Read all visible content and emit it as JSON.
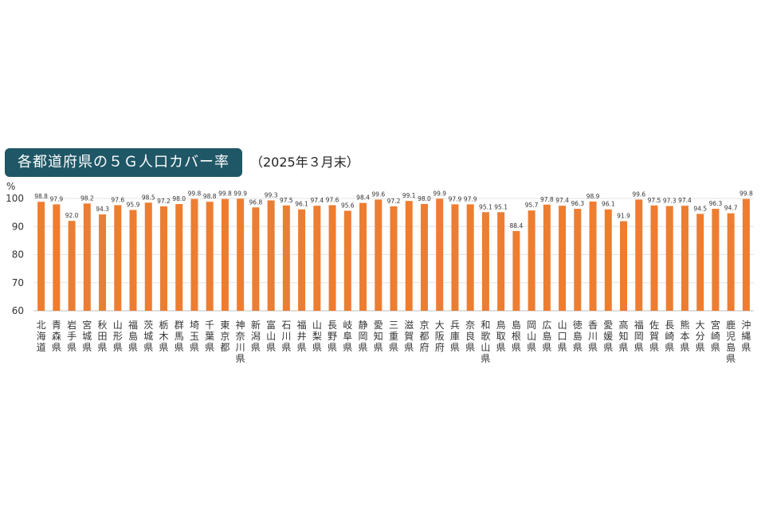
{
  "chart_data": {
    "type": "bar",
    "title": "各都道府県の５Ｇ人口カバー率",
    "subtitle": "（2025年３月末）",
    "ylabel": "%",
    "xlabel": "",
    "ylim": [
      60,
      100
    ],
    "yticks": [
      60,
      70,
      80,
      90,
      100
    ],
    "grid": true,
    "bar_color": "#ed7d31",
    "categories": [
      "北海道",
      "青森県",
      "岩手県",
      "宮城県",
      "秋田県",
      "山形県",
      "福島県",
      "茨城県",
      "栃木県",
      "群馬県",
      "埼玉県",
      "千葉県",
      "東京都",
      "神奈川県",
      "新潟県",
      "富山県",
      "石川県",
      "福井県",
      "山梨県",
      "長野県",
      "岐阜県",
      "静岡県",
      "愛知県",
      "三重県",
      "滋賀県",
      "京都府",
      "大阪府",
      "兵庫県",
      "奈良県",
      "和歌山県",
      "鳥取県",
      "島根県",
      "岡山県",
      "広島県",
      "山口県",
      "徳島県",
      "香川県",
      "愛媛県",
      "高知県",
      "福岡県",
      "佐賀県",
      "長崎県",
      "熊本県",
      "大分県",
      "宮崎県",
      "鹿児島県",
      "沖縄県"
    ],
    "values": [
      98.8,
      97.9,
      92.0,
      98.2,
      94.3,
      97.6,
      95.9,
      98.5,
      97.2,
      98.0,
      99.8,
      98.8,
      99.8,
      99.9,
      96.8,
      99.3,
      97.5,
      96.1,
      97.4,
      97.6,
      95.6,
      98.4,
      99.6,
      97.2,
      99.1,
      98.0,
      99.9,
      97.9,
      97.9,
      95.1,
      95.1,
      88.4,
      95.7,
      97.8,
      97.4,
      96.3,
      98.9,
      96.1,
      91.9,
      99.6,
      97.5,
      97.3,
      97.4,
      94.5,
      96.3,
      94.7,
      99.8
    ],
    "value_labels": [
      "98.8",
      "97.9",
      "92.0",
      "98.2",
      "94.3",
      "97.6",
      "95.9",
      "98.5",
      "97.2",
      "98.0",
      "99.8",
      "98.8",
      "99.8",
      "99.9",
      "96.8",
      "99.3",
      "97.5",
      "96.1",
      "97.4",
      "97.6",
      "95.6",
      "98.4",
      "99.6",
      "97.2",
      "99.1",
      "98.0",
      "99.9",
      "97.9",
      "97.9",
      "95.1",
      "95.1",
      "88.4",
      "95.7",
      "97.8",
      "97.4",
      "96.3",
      "98.9",
      "96.1",
      "91.9",
      "99.6",
      "97.5",
      "97.3",
      "97.4",
      "94.5",
      "96.3",
      "94.7",
      "99.8"
    ]
  }
}
